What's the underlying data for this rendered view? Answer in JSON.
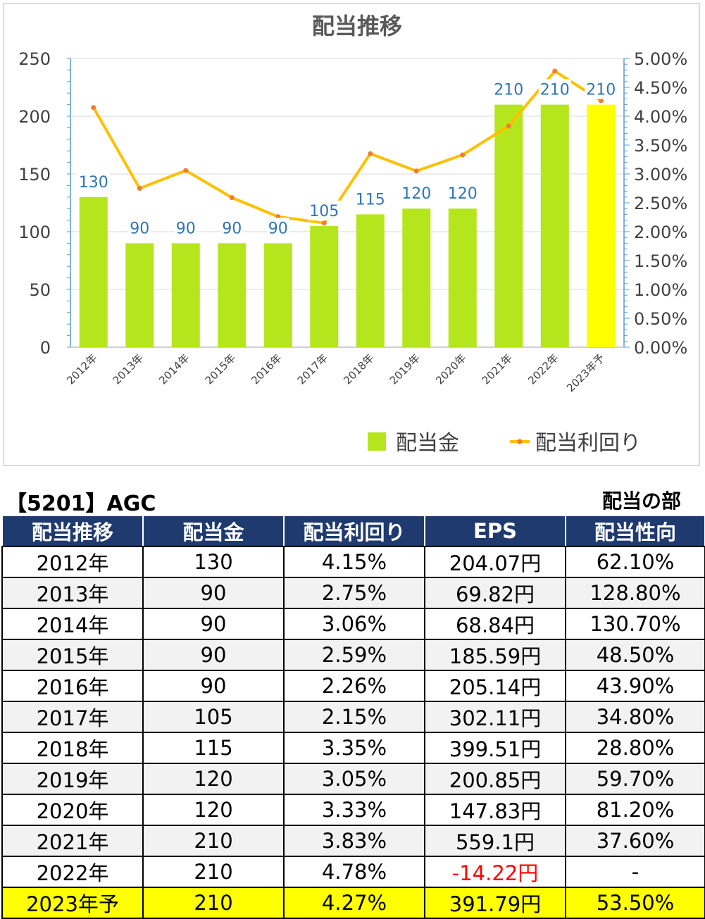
{
  "chart_data": {
    "type": "bar+line",
    "title": "配当推移",
    "categories": [
      "2012年",
      "2013年",
      "2014年",
      "2015年",
      "2016年",
      "2017年",
      "2018年",
      "2019年",
      "2020年",
      "2021年",
      "2022年",
      "2023年予"
    ],
    "series": [
      {
        "name": "配当金",
        "type": "bar",
        "axis": "left",
        "values": [
          130,
          90,
          90,
          90,
          90,
          105,
          115,
          120,
          120,
          210,
          210,
          210
        ],
        "color": "#b5e61d",
        "highlight_last_color": "#ffff00"
      },
      {
        "name": "配当利回り",
        "type": "line",
        "axis": "right",
        "values": [
          4.15,
          2.75,
          3.06,
          2.59,
          2.26,
          2.15,
          3.35,
          3.05,
          3.33,
          3.83,
          4.78,
          4.27
        ],
        "color": "#ffc000",
        "marker_color": "#ed7d31"
      }
    ],
    "left_ylim": [
      0,
      250
    ],
    "left_ticks": [
      "0",
      "50",
      "100",
      "150",
      "200",
      "250"
    ],
    "right_ylim": [
      0,
      5
    ],
    "right_ticks": [
      "0.00%",
      "0.50%",
      "1.00%",
      "1.50%",
      "2.00%",
      "2.50%",
      "3.00%",
      "3.50%",
      "4.00%",
      "4.50%",
      "5.00%"
    ],
    "legend_position": "bottom-right",
    "grid": true
  },
  "header": {
    "company": "【5201】AGC",
    "section": "配当の部"
  },
  "table": {
    "columns": [
      "配当推移",
      "配当金",
      "配当利回り",
      "EPS",
      "配当性向"
    ],
    "rows": [
      [
        "2012年",
        "130",
        "4.15%",
        "204.07円",
        "62.10%"
      ],
      [
        "2013年",
        "90",
        "2.75%",
        "69.82円",
        "128.80%"
      ],
      [
        "2014年",
        "90",
        "3.06%",
        "68.84円",
        "130.70%"
      ],
      [
        "2015年",
        "90",
        "2.59%",
        "185.59円",
        "48.50%"
      ],
      [
        "2016年",
        "90",
        "2.26%",
        "205.14円",
        "43.90%"
      ],
      [
        "2017年",
        "105",
        "2.15%",
        "302.11円",
        "34.80%"
      ],
      [
        "2018年",
        "115",
        "3.35%",
        "399.51円",
        "28.80%"
      ],
      [
        "2019年",
        "120",
        "3.05%",
        "200.85円",
        "59.70%"
      ],
      [
        "2020年",
        "120",
        "3.33%",
        "147.83円",
        "81.20%"
      ],
      [
        "2021年",
        "210",
        "3.83%",
        "559.1円",
        "37.60%"
      ],
      [
        "2022年",
        "210",
        "4.78%",
        "-14.22円",
        "-"
      ],
      [
        "2023年予",
        "210",
        "4.27%",
        "391.79円",
        "53.50%"
      ]
    ]
  }
}
